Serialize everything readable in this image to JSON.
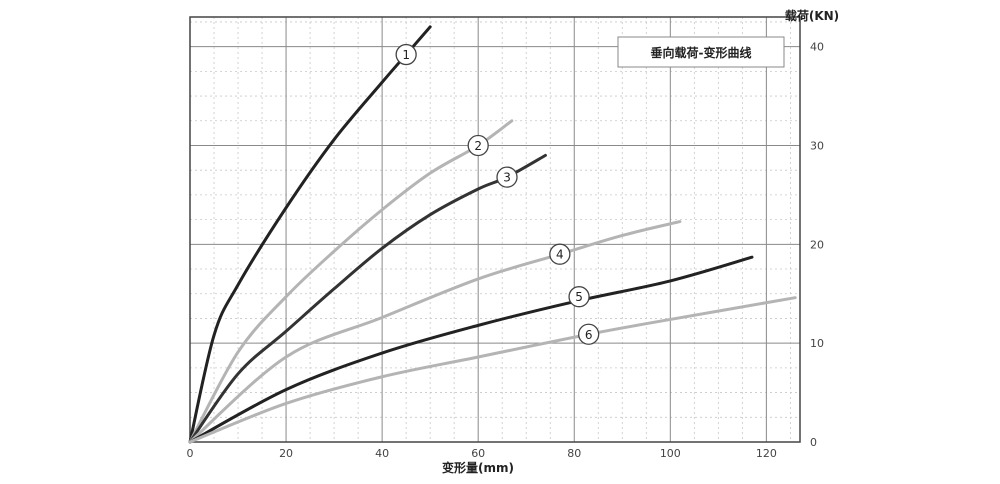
{
  "chart_data": {
    "type": "line",
    "title": "垂向载荷-变形曲线",
    "xlabel": "变形量(mm)",
    "ylabel": "载荷(KN)",
    "xlim": [
      0,
      127
    ],
    "ylim": [
      0,
      43
    ],
    "x_ticks": [
      0,
      20,
      40,
      60,
      80,
      100,
      120
    ],
    "y_ticks": [
      0,
      10,
      20,
      30,
      40
    ],
    "grid": true,
    "legend_position": "top-right",
    "series": [
      {
        "name": "1",
        "color": "#222222",
        "x": [
          0,
          5,
          10,
          20,
          30,
          40,
          45,
          50
        ],
        "y": [
          0,
          10.8,
          15.9,
          23.7,
          30.6,
          36.4,
          39.2,
          42.0
        ],
        "label_at": [
          45,
          39.2
        ]
      },
      {
        "name": "2",
        "color": "#b4b4b4",
        "x": [
          0,
          10,
          20,
          30,
          40,
          50,
          60,
          67
        ],
        "y": [
          0,
          9.1,
          14.7,
          19.3,
          23.5,
          27.2,
          30.0,
          32.5
        ],
        "label_at": [
          60,
          30.0
        ]
      },
      {
        "name": "3",
        "color": "#333333",
        "x": [
          0,
          10,
          20,
          30,
          40,
          50,
          60,
          66,
          74
        ],
        "y": [
          0,
          6.9,
          11.2,
          15.5,
          19.6,
          23.0,
          25.6,
          26.8,
          29.0
        ],
        "label_at": [
          66,
          26.8
        ]
      },
      {
        "name": "4",
        "color": "#b4b4b4",
        "x": [
          0,
          20,
          40,
          60,
          77,
          90,
          102
        ],
        "y": [
          0,
          8.6,
          12.6,
          16.5,
          19.0,
          20.9,
          22.3
        ],
        "label_at": [
          77,
          19.0
        ]
      },
      {
        "name": "5",
        "color": "#222222",
        "x": [
          0,
          20,
          40,
          60,
          80,
          100,
          117
        ],
        "y": [
          0,
          5.3,
          9.0,
          11.8,
          14.2,
          16.3,
          18.7
        ],
        "label_at": [
          81,
          14.7
        ]
      },
      {
        "name": "6",
        "color": "#b4b4b4",
        "x": [
          0,
          20,
          40,
          60,
          83,
          100,
          126
        ],
        "y": [
          0,
          3.9,
          6.6,
          8.6,
          10.9,
          12.4,
          14.6
        ],
        "label_at": [
          83,
          10.9
        ]
      }
    ]
  }
}
